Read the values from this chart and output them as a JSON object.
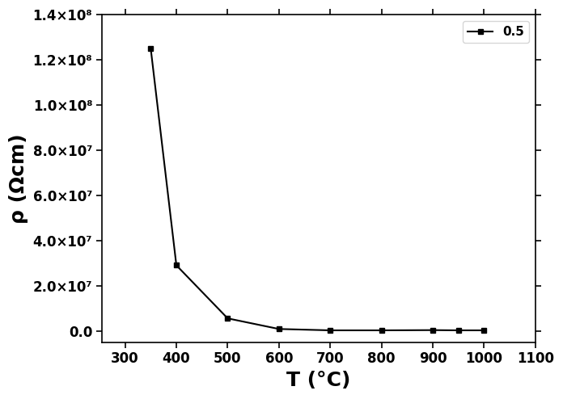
{
  "x": [
    350,
    400,
    500,
    600,
    700,
    800,
    900,
    950,
    1000
  ],
  "y": [
    125000000.0,
    29000000.0,
    5500000.0,
    800000.0,
    200000.0,
    200000.0,
    300000.0,
    200000.0,
    200000.0
  ],
  "line_color": "#000000",
  "marker": "s",
  "marker_size": 5,
  "line_width": 1.5,
  "legend_label": "0.5",
  "xlabel": "T (°C)",
  "ylabel": "ρ (Ωcm)",
  "xlim": [
    255,
    1100
  ],
  "ylim": [
    -5000000.0,
    140000000.0
  ],
  "xticks": [
    300,
    400,
    500,
    600,
    700,
    800,
    900,
    1000,
    1100
  ],
  "yticks": [
    0.0,
    20000000.0,
    40000000.0,
    60000000.0,
    80000000.0,
    100000000.0,
    120000000.0,
    140000000.0
  ],
  "ytick_labels": [
    "0.0",
    "2.0×10⁷",
    "4.0×10⁷",
    "6.0×10⁷",
    "8.0×10⁷",
    "1.0×10⁸",
    "1.2×10⁸",
    "1.4×10⁸"
  ],
  "label_fontsize": 18,
  "tick_fontsize": 12,
  "legend_fontsize": 11,
  "background_color": "#ffffff",
  "legend_position": "upper right",
  "figsize": [
    6.96,
    4.94
  ],
  "dpi": 100
}
